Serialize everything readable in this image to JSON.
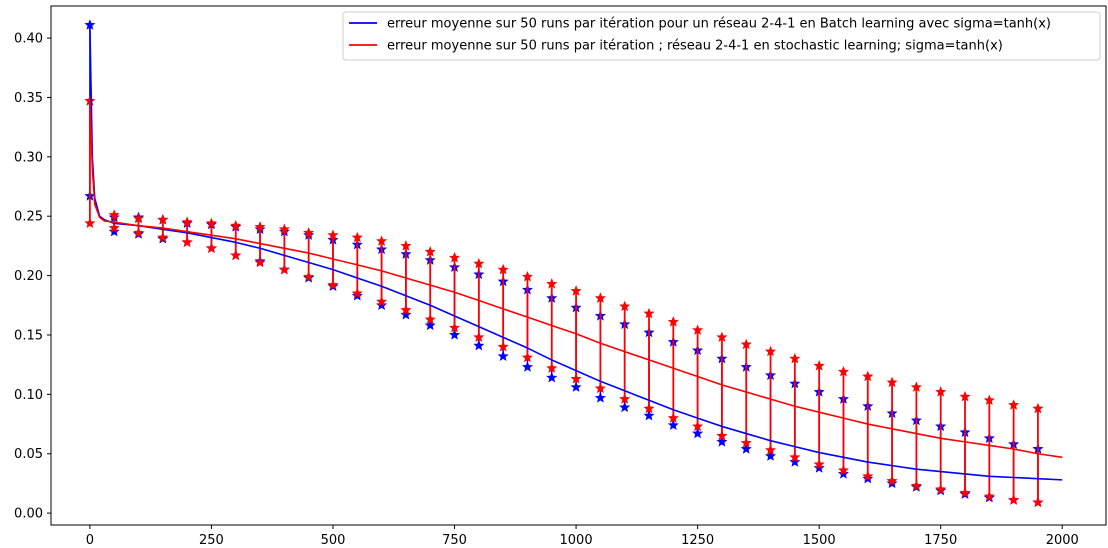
{
  "chart_data": {
    "type": "line",
    "title": "",
    "xlabel": "",
    "ylabel": "",
    "xlim": [
      -80,
      2090
    ],
    "ylim": [
      -0.01,
      0.427
    ],
    "x_ticks": [
      0,
      250,
      500,
      750,
      1000,
      1250,
      1500,
      1750,
      2000
    ],
    "y_ticks": [
      0.0,
      0.05,
      0.1,
      0.15,
      0.2,
      0.25,
      0.3,
      0.35,
      0.4
    ],
    "x_tick_labels": [
      "0",
      "250",
      "500",
      "750",
      "1000",
      "1250",
      "1500",
      "1750",
      "2000"
    ],
    "y_tick_labels": [
      "0.00",
      "0.05",
      "0.10",
      "0.15",
      "0.20",
      "0.25",
      "0.30",
      "0.35",
      "0.40"
    ],
    "grid": false,
    "legend_position": "top-right",
    "series": [
      {
        "name": "erreur moyenne sur 50 runs par itération pour un réseau 2-4-1 en Batch learning avec sigma=tanh(x)",
        "color": "#0000ff",
        "x": [
          0,
          5,
          10,
          20,
          30,
          50,
          100,
          150,
          200,
          250,
          300,
          350,
          400,
          450,
          500,
          550,
          600,
          650,
          700,
          750,
          800,
          850,
          900,
          950,
          1000,
          1050,
          1100,
          1150,
          1200,
          1250,
          1300,
          1350,
          1400,
          1450,
          1500,
          1550,
          1600,
          1650,
          1700,
          1750,
          1800,
          1850,
          1900,
          1950,
          2000
        ],
        "y": [
          0.41,
          0.3,
          0.265,
          0.25,
          0.247,
          0.244,
          0.242,
          0.239,
          0.236,
          0.232,
          0.228,
          0.223,
          0.217,
          0.211,
          0.205,
          0.198,
          0.191,
          0.183,
          0.175,
          0.166,
          0.157,
          0.148,
          0.139,
          0.129,
          0.12,
          0.111,
          0.103,
          0.095,
          0.087,
          0.08,
          0.073,
          0.067,
          0.061,
          0.056,
          0.051,
          0.047,
          0.043,
          0.04,
          0.037,
          0.035,
          0.033,
          0.031,
          0.03,
          0.029,
          0.028
        ]
      },
      {
        "name": "erreur moyenne sur 50 runs par itération ; réseau 2-4-1 en stochastic learning; sigma=tanh(x)",
        "color": "#ff0000",
        "x": [
          0,
          5,
          10,
          20,
          30,
          50,
          100,
          150,
          200,
          250,
          300,
          350,
          400,
          450,
          500,
          550,
          600,
          650,
          700,
          750,
          800,
          850,
          900,
          950,
          1000,
          1050,
          1100,
          1150,
          1200,
          1250,
          1300,
          1350,
          1400,
          1450,
          1500,
          1550,
          1600,
          1650,
          1700,
          1750,
          1800,
          1850,
          1900,
          1950,
          2000
        ],
        "y": [
          0.347,
          0.29,
          0.26,
          0.249,
          0.246,
          0.245,
          0.242,
          0.24,
          0.237,
          0.234,
          0.231,
          0.227,
          0.223,
          0.219,
          0.214,
          0.209,
          0.204,
          0.198,
          0.192,
          0.186,
          0.179,
          0.172,
          0.165,
          0.158,
          0.151,
          0.143,
          0.136,
          0.129,
          0.122,
          0.115,
          0.108,
          0.102,
          0.096,
          0.09,
          0.085,
          0.08,
          0.075,
          0.071,
          0.067,
          0.063,
          0.06,
          0.057,
          0.054,
          0.05,
          0.047
        ]
      }
    ],
    "markers": [
      {
        "series": 0,
        "color": "#0000ff",
        "x": [
          0,
          50,
          100,
          150,
          200,
          250,
          300,
          350,
          400,
          450,
          500,
          550,
          600,
          650,
          700,
          750,
          800,
          850,
          900,
          950,
          1000,
          1050,
          1100,
          1150,
          1200,
          1250,
          1300,
          1350,
          1400,
          1450,
          1500,
          1550,
          1600,
          1650,
          1700,
          1750,
          1800,
          1850,
          1900,
          1950
        ],
        "y_upper": [
          0.411,
          0.249,
          0.249,
          0.247,
          0.244,
          0.243,
          0.241,
          0.239,
          0.237,
          0.234,
          0.23,
          0.226,
          0.222,
          0.218,
          0.213,
          0.207,
          0.201,
          0.195,
          0.188,
          0.181,
          0.173,
          0.166,
          0.159,
          0.152,
          0.144,
          0.137,
          0.13,
          0.123,
          0.116,
          0.109,
          0.102,
          0.096,
          0.09,
          0.084,
          0.078,
          0.073,
          0.068,
          0.063,
          0.058,
          0.054
        ],
        "y_lower": [
          0.267,
          0.237,
          0.235,
          0.231,
          0.228,
          0.223,
          0.217,
          0.212,
          0.205,
          0.198,
          0.191,
          0.183,
          0.175,
          0.167,
          0.158,
          0.15,
          0.141,
          0.132,
          0.123,
          0.114,
          0.106,
          0.097,
          0.089,
          0.082,
          0.074,
          0.067,
          0.06,
          0.054,
          0.048,
          0.043,
          0.038,
          0.033,
          0.029,
          0.025,
          0.022,
          0.019,
          0.016,
          0.013,
          0.011,
          0.009
        ]
      },
      {
        "series": 1,
        "color": "#ff0000",
        "x": [
          0,
          50,
          100,
          150,
          200,
          250,
          300,
          350,
          400,
          450,
          500,
          550,
          600,
          650,
          700,
          750,
          800,
          850,
          900,
          950,
          1000,
          1050,
          1100,
          1150,
          1200,
          1250,
          1300,
          1350,
          1400,
          1450,
          1500,
          1550,
          1600,
          1650,
          1700,
          1750,
          1800,
          1850,
          1900,
          1950
        ],
        "y_upper": [
          0.347,
          0.251,
          0.248,
          0.247,
          0.245,
          0.244,
          0.242,
          0.241,
          0.239,
          0.236,
          0.234,
          0.232,
          0.229,
          0.225,
          0.22,
          0.215,
          0.21,
          0.205,
          0.199,
          0.193,
          0.187,
          0.181,
          0.174,
          0.168,
          0.161,
          0.154,
          0.148,
          0.142,
          0.136,
          0.13,
          0.124,
          0.119,
          0.115,
          0.11,
          0.106,
          0.102,
          0.098,
          0.095,
          0.091,
          0.088
        ],
        "y_lower": [
          0.244,
          0.24,
          0.236,
          0.232,
          0.228,
          0.223,
          0.217,
          0.211,
          0.205,
          0.199,
          0.192,
          0.185,
          0.178,
          0.171,
          0.163,
          0.156,
          0.148,
          0.14,
          0.131,
          0.122,
          0.113,
          0.105,
          0.096,
          0.088,
          0.08,
          0.073,
          0.065,
          0.059,
          0.053,
          0.047,
          0.041,
          0.036,
          0.031,
          0.027,
          0.023,
          0.02,
          0.017,
          0.014,
          0.011,
          0.009
        ]
      }
    ]
  }
}
